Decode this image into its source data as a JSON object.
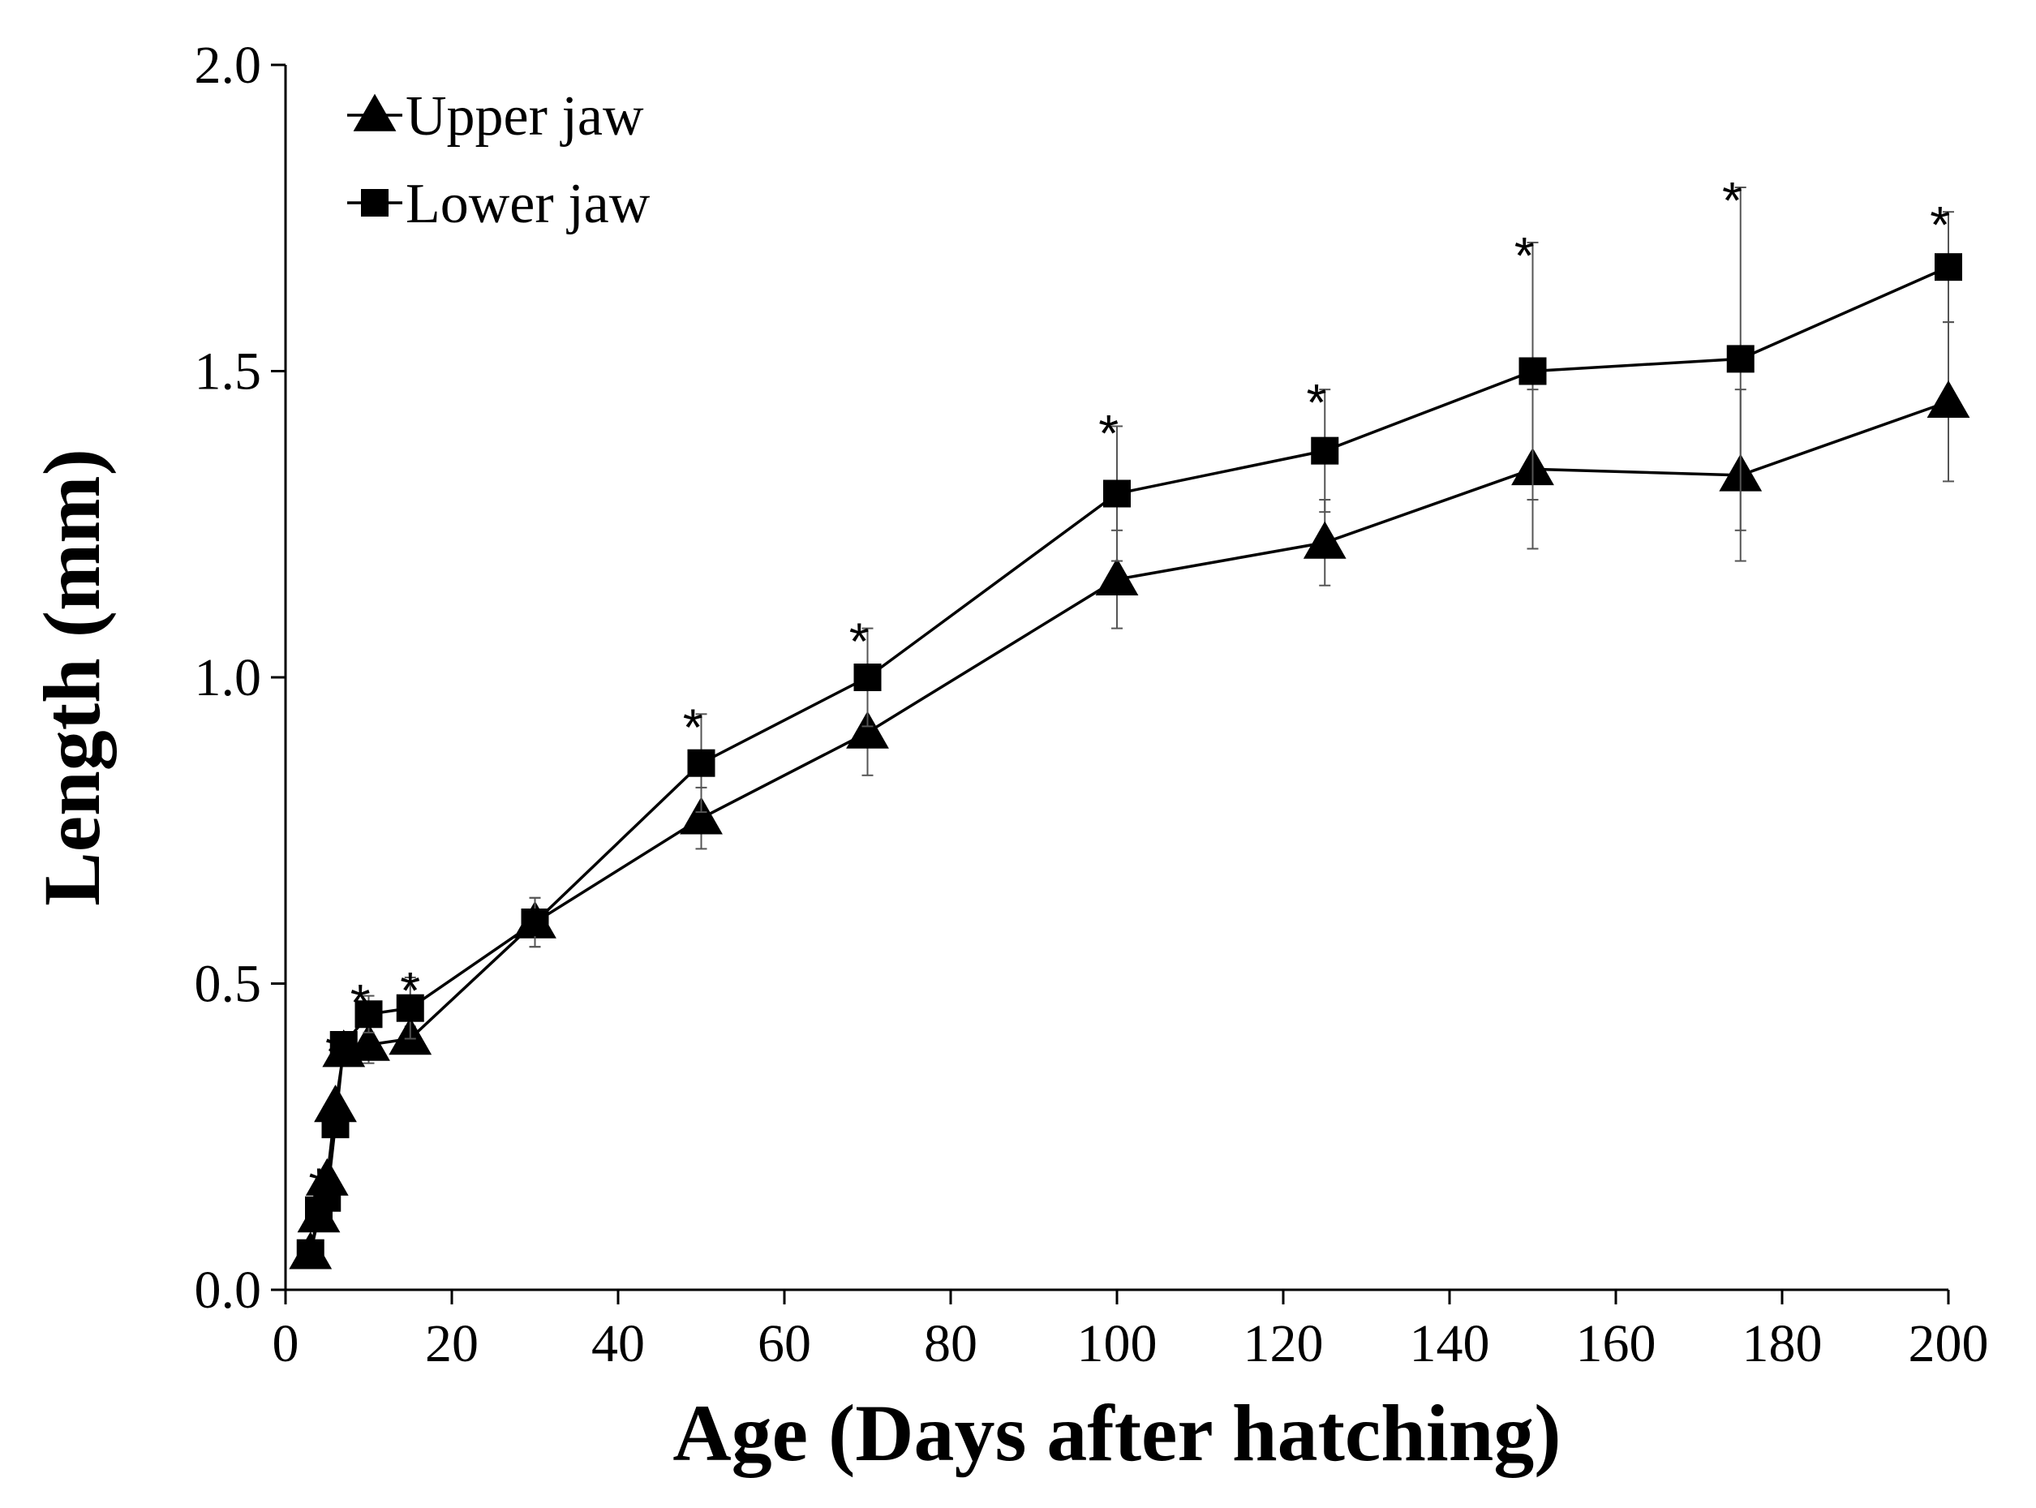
{
  "chart_data": {
    "type": "line",
    "title": "",
    "xlabel": "Age (Days after hatching)",
    "ylabel": "Length (mm)",
    "xlim": [
      0,
      200
    ],
    "ylim": [
      0,
      2.0
    ],
    "xticks": [
      0,
      20,
      40,
      60,
      80,
      100,
      120,
      140,
      160,
      180,
      200
    ],
    "xtick_labels": [
      "0",
      "20",
      "40",
      "60",
      "80",
      "100",
      "120",
      "140",
      "160",
      "180",
      "200"
    ],
    "yticks": [
      0,
      0.5,
      1.0,
      1.5,
      2.0
    ],
    "ytick_labels": [
      "0.0",
      "0.5",
      "1.0",
      "1.5",
      "2.0"
    ],
    "grid": false,
    "legend": "top-left",
    "series": [
      {
        "name": "Upper jaw",
        "marker": "triangle",
        "x": [
          3,
          4,
          5,
          6,
          7,
          10,
          15,
          30,
          50,
          70,
          100,
          125,
          150,
          175,
          200
        ],
        "y": [
          0.06,
          0.12,
          0.18,
          0.3,
          0.39,
          0.4,
          0.41,
          0.6,
          0.77,
          0.91,
          1.16,
          1.22,
          1.34,
          1.33,
          1.45
        ],
        "error": [
          0,
          0,
          0,
          0,
          0,
          0.03,
          0.02,
          0.04,
          0.05,
          0.07,
          0.08,
          0.07,
          0.13,
          0.14,
          0.13
        ]
      },
      {
        "name": "Lower jaw",
        "marker": "square",
        "x": [
          3,
          4,
          5,
          6,
          7,
          10,
          15,
          30,
          50,
          70,
          100,
          125,
          150,
          175,
          200
        ],
        "y": [
          0.06,
          0.13,
          0.15,
          0.27,
          0.4,
          0.45,
          0.46,
          0.6,
          0.86,
          1.0,
          1.3,
          1.37,
          1.5,
          1.52,
          1.67
        ],
        "error": [
          0,
          0,
          0,
          0,
          0,
          0.03,
          0.05,
          0.04,
          0.08,
          0.08,
          0.11,
          0.1,
          0.21,
          0.28,
          0.09
        ]
      }
    ],
    "annotations": [
      {
        "text": "*",
        "x": 4,
        "y": 0.19
      },
      {
        "text": "*",
        "x": 5.5,
        "y": 0.3
      },
      {
        "text": "*",
        "x": 6,
        "y": 0.41
      },
      {
        "text": "*",
        "x": 9,
        "y": 0.49
      },
      {
        "text": "*",
        "x": 15,
        "y": 0.51
      },
      {
        "text": "*",
        "x": 49,
        "y": 0.94
      },
      {
        "text": "*",
        "x": 69,
        "y": 1.08
      },
      {
        "text": "*",
        "x": 99,
        "y": 1.42
      },
      {
        "text": "*",
        "x": 124,
        "y": 1.47
      },
      {
        "text": "*",
        "x": 149,
        "y": 1.71
      },
      {
        "text": "*",
        "x": 174,
        "y": 1.8
      },
      {
        "text": "*",
        "x": 199,
        "y": 1.76
      }
    ]
  }
}
